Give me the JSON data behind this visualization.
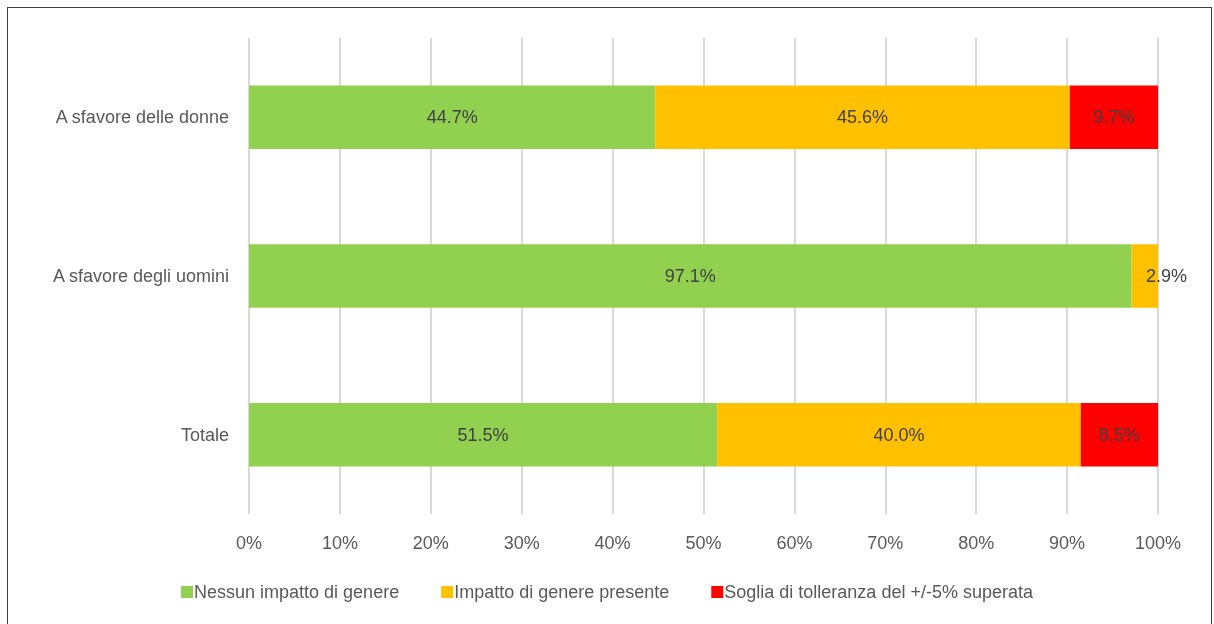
{
  "chart_data": {
    "type": "bar",
    "orientation": "horizontal",
    "stacked": true,
    "categories": [
      "A sfavore delle donne",
      "A sfavore degli uomini",
      "Totale"
    ],
    "series": [
      {
        "name": "Nessun impatto di genere",
        "color": "#92d050",
        "values": [
          44.7,
          97.1,
          51.5
        ],
        "value_labels": [
          "44.7%",
          "97.1%",
          "51.5%"
        ]
      },
      {
        "name": "Impatto di genere presente",
        "color": "#ffc000",
        "values": [
          45.6,
          2.9,
          40.0
        ],
        "value_labels": [
          "45.6%",
          "2.9%",
          "40.0%"
        ]
      },
      {
        "name": "Soglia di tolleranza del +/-5% superata",
        "color": "#ff0000",
        "values": [
          9.7,
          null,
          8.5
        ],
        "value_labels": [
          "9.7%",
          null,
          "8.5%"
        ]
      }
    ],
    "xlim": [
      0,
      100
    ],
    "xticks": [
      {
        "value": 0,
        "label": "0%"
      },
      {
        "value": 10,
        "label": "10%"
      },
      {
        "value": 20,
        "label": "20%"
      },
      {
        "value": 30,
        "label": "30%"
      },
      {
        "value": 40,
        "label": "40%"
      },
      {
        "value": 50,
        "label": "50%"
      },
      {
        "value": 60,
        "label": "60%"
      },
      {
        "value": 70,
        "label": "70%"
      },
      {
        "value": 80,
        "label": "80%"
      },
      {
        "value": 90,
        "label": "90%"
      },
      {
        "value": 100,
        "label": "100%"
      }
    ],
    "grid": "x",
    "legend": "bottom"
  }
}
